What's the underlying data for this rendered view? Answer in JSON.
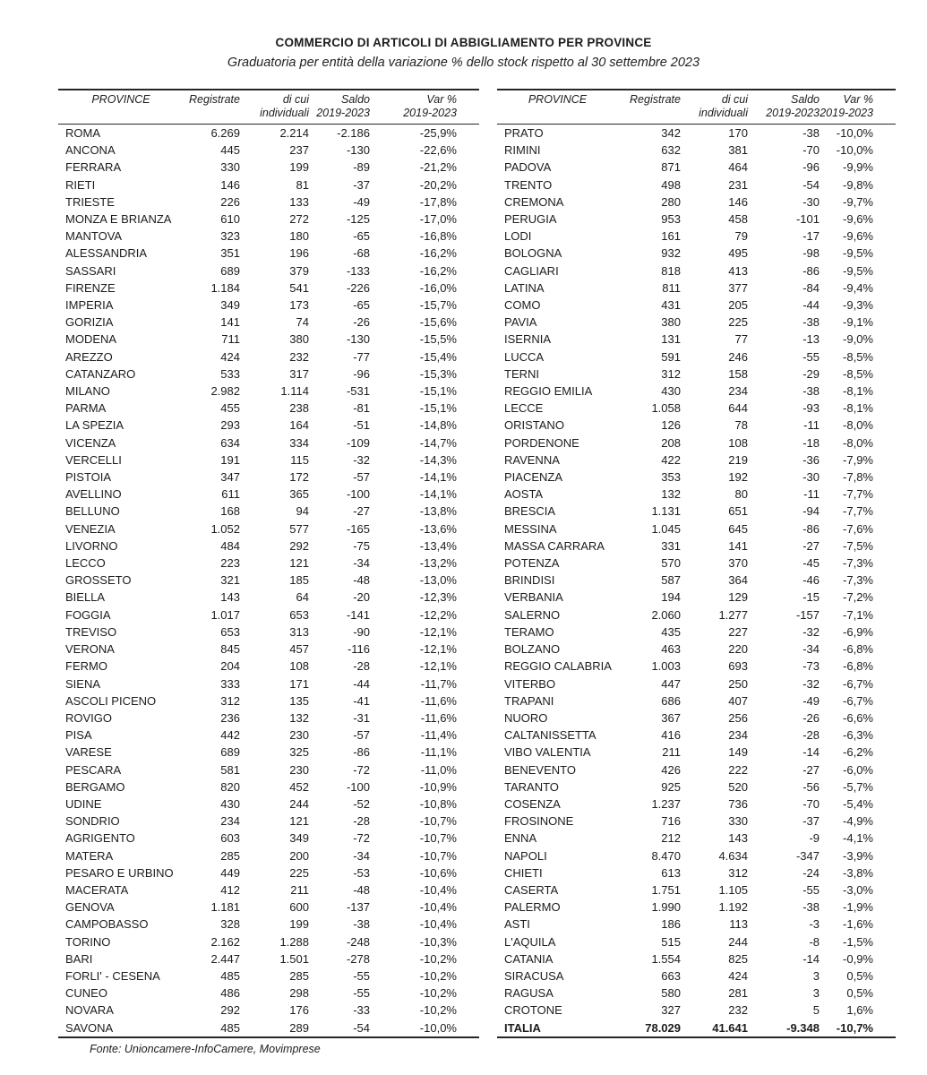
{
  "title": "COMMERCIO DI ARTICOLI DI ABBIGLIAMENTO PER PROVINCE",
  "subtitle": "Graduatoria per entità della variazione % dello stock rispetto al 30 settembre 2023",
  "source": "Fonte: Unioncamere-InfoCamere, Movimprese",
  "columns": [
    {
      "line1": "PROVINCE",
      "line2": ""
    },
    {
      "line1": "Registrate",
      "line2": ""
    },
    {
      "line1": "di cui",
      "line2": "individuali"
    },
    {
      "line1": "Saldo",
      "line2": "2019-2023"
    },
    {
      "line1": "Var %",
      "line2": "2019-2023"
    }
  ],
  "left_table": {
    "rows": [
      [
        "ROMA",
        "6.269",
        "2.214",
        "-2.186",
        "-25,9%"
      ],
      [
        "ANCONA",
        "445",
        "237",
        "-130",
        "-22,6%"
      ],
      [
        "FERRARA",
        "330",
        "199",
        "-89",
        "-21,2%"
      ],
      [
        "RIETI",
        "146",
        "81",
        "-37",
        "-20,2%"
      ],
      [
        "TRIESTE",
        "226",
        "133",
        "-49",
        "-17,8%"
      ],
      [
        "MONZA E BRIANZA",
        "610",
        "272",
        "-125",
        "-17,0%"
      ],
      [
        "MANTOVA",
        "323",
        "180",
        "-65",
        "-16,8%"
      ],
      [
        "ALESSANDRIA",
        "351",
        "196",
        "-68",
        "-16,2%"
      ],
      [
        "SASSARI",
        "689",
        "379",
        "-133",
        "-16,2%"
      ],
      [
        "FIRENZE",
        "1.184",
        "541",
        "-226",
        "-16,0%"
      ],
      [
        "IMPERIA",
        "349",
        "173",
        "-65",
        "-15,7%"
      ],
      [
        "GORIZIA",
        "141",
        "74",
        "-26",
        "-15,6%"
      ],
      [
        "MODENA",
        "711",
        "380",
        "-130",
        "-15,5%"
      ],
      [
        "AREZZO",
        "424",
        "232",
        "-77",
        "-15,4%"
      ],
      [
        "CATANZARO",
        "533",
        "317",
        "-96",
        "-15,3%"
      ],
      [
        "MILANO",
        "2.982",
        "1.114",
        "-531",
        "-15,1%"
      ],
      [
        "PARMA",
        "455",
        "238",
        "-81",
        "-15,1%"
      ],
      [
        "LA SPEZIA",
        "293",
        "164",
        "-51",
        "-14,8%"
      ],
      [
        "VICENZA",
        "634",
        "334",
        "-109",
        "-14,7%"
      ],
      [
        "VERCELLI",
        "191",
        "115",
        "-32",
        "-14,3%"
      ],
      [
        "PISTOIA",
        "347",
        "172",
        "-57",
        "-14,1%"
      ],
      [
        "AVELLINO",
        "611",
        "365",
        "-100",
        "-14,1%"
      ],
      [
        "BELLUNO",
        "168",
        "94",
        "-27",
        "-13,8%"
      ],
      [
        "VENEZIA",
        "1.052",
        "577",
        "-165",
        "-13,6%"
      ],
      [
        "LIVORNO",
        "484",
        "292",
        "-75",
        "-13,4%"
      ],
      [
        "LECCO",
        "223",
        "121",
        "-34",
        "-13,2%"
      ],
      [
        "GROSSETO",
        "321",
        "185",
        "-48",
        "-13,0%"
      ],
      [
        "BIELLA",
        "143",
        "64",
        "-20",
        "-12,3%"
      ],
      [
        "FOGGIA",
        "1.017",
        "653",
        "-141",
        "-12,2%"
      ],
      [
        "TREVISO",
        "653",
        "313",
        "-90",
        "-12,1%"
      ],
      [
        "VERONA",
        "845",
        "457",
        "-116",
        "-12,1%"
      ],
      [
        "FERMO",
        "204",
        "108",
        "-28",
        "-12,1%"
      ],
      [
        "SIENA",
        "333",
        "171",
        "-44",
        "-11,7%"
      ],
      [
        "ASCOLI PICENO",
        "312",
        "135",
        "-41",
        "-11,6%"
      ],
      [
        "ROVIGO",
        "236",
        "132",
        "-31",
        "-11,6%"
      ],
      [
        "PISA",
        "442",
        "230",
        "-57",
        "-11,4%"
      ],
      [
        "VARESE",
        "689",
        "325",
        "-86",
        "-11,1%"
      ],
      [
        "PESCARA",
        "581",
        "230",
        "-72",
        "-11,0%"
      ],
      [
        "BERGAMO",
        "820",
        "452",
        "-100",
        "-10,9%"
      ],
      [
        "UDINE",
        "430",
        "244",
        "-52",
        "-10,8%"
      ],
      [
        "SONDRIO",
        "234",
        "121",
        "-28",
        "-10,7%"
      ],
      [
        "AGRIGENTO",
        "603",
        "349",
        "-72",
        "-10,7%"
      ],
      [
        "MATERA",
        "285",
        "200",
        "-34",
        "-10,7%"
      ],
      [
        "PESARO E URBINO",
        "449",
        "225",
        "-53",
        "-10,6%"
      ],
      [
        "MACERATA",
        "412",
        "211",
        "-48",
        "-10,4%"
      ],
      [
        "GENOVA",
        "1.181",
        "600",
        "-137",
        "-10,4%"
      ],
      [
        "CAMPOBASSO",
        "328",
        "199",
        "-38",
        "-10,4%"
      ],
      [
        "TORINO",
        "2.162",
        "1.288",
        "-248",
        "-10,3%"
      ],
      [
        "BARI",
        "2.447",
        "1.501",
        "-278",
        "-10,2%"
      ],
      [
        "FORLI' - CESENA",
        "485",
        "285",
        "-55",
        "-10,2%"
      ],
      [
        "CUNEO",
        "486",
        "298",
        "-55",
        "-10,2%"
      ],
      [
        "NOVARA",
        "292",
        "176",
        "-33",
        "-10,2%"
      ],
      [
        "SAVONA",
        "485",
        "289",
        "-54",
        "-10,0%"
      ]
    ],
    "total": null
  },
  "right_table": {
    "rows": [
      [
        "PRATO",
        "342",
        "170",
        "-38",
        "-10,0%"
      ],
      [
        "RIMINI",
        "632",
        "381",
        "-70",
        "-10,0%"
      ],
      [
        "PADOVA",
        "871",
        "464",
        "-96",
        "-9,9%"
      ],
      [
        "TRENTO",
        "498",
        "231",
        "-54",
        "-9,8%"
      ],
      [
        "CREMONA",
        "280",
        "146",
        "-30",
        "-9,7%"
      ],
      [
        "PERUGIA",
        "953",
        "458",
        "-101",
        "-9,6%"
      ],
      [
        "LODI",
        "161",
        "79",
        "-17",
        "-9,6%"
      ],
      [
        "BOLOGNA",
        "932",
        "495",
        "-98",
        "-9,5%"
      ],
      [
        "CAGLIARI",
        "818",
        "413",
        "-86",
        "-9,5%"
      ],
      [
        "LATINA",
        "811",
        "377",
        "-84",
        "-9,4%"
      ],
      [
        "COMO",
        "431",
        "205",
        "-44",
        "-9,3%"
      ],
      [
        "PAVIA",
        "380",
        "225",
        "-38",
        "-9,1%"
      ],
      [
        "ISERNIA",
        "131",
        "77",
        "-13",
        "-9,0%"
      ],
      [
        "LUCCA",
        "591",
        "246",
        "-55",
        "-8,5%"
      ],
      [
        "TERNI",
        "312",
        "158",
        "-29",
        "-8,5%"
      ],
      [
        "REGGIO EMILIA",
        "430",
        "234",
        "-38",
        "-8,1%"
      ],
      [
        "LECCE",
        "1.058",
        "644",
        "-93",
        "-8,1%"
      ],
      [
        "ORISTANO",
        "126",
        "78",
        "-11",
        "-8,0%"
      ],
      [
        "PORDENONE",
        "208",
        "108",
        "-18",
        "-8,0%"
      ],
      [
        "RAVENNA",
        "422",
        "219",
        "-36",
        "-7,9%"
      ],
      [
        "PIACENZA",
        "353",
        "192",
        "-30",
        "-7,8%"
      ],
      [
        "AOSTA",
        "132",
        "80",
        "-11",
        "-7,7%"
      ],
      [
        "BRESCIA",
        "1.131",
        "651",
        "-94",
        "-7,7%"
      ],
      [
        "MESSINA",
        "1.045",
        "645",
        "-86",
        "-7,6%"
      ],
      [
        "MASSA CARRARA",
        "331",
        "141",
        "-27",
        "-7,5%"
      ],
      [
        "POTENZA",
        "570",
        "370",
        "-45",
        "-7,3%"
      ],
      [
        "BRINDISI",
        "587",
        "364",
        "-46",
        "-7,3%"
      ],
      [
        "VERBANIA",
        "194",
        "129",
        "-15",
        "-7,2%"
      ],
      [
        "SALERNO",
        "2.060",
        "1.277",
        "-157",
        "-7,1%"
      ],
      [
        "TERAMO",
        "435",
        "227",
        "-32",
        "-6,9%"
      ],
      [
        "BOLZANO",
        "463",
        "220",
        "-34",
        "-6,8%"
      ],
      [
        "REGGIO CALABRIA",
        "1.003",
        "693",
        "-73",
        "-6,8%"
      ],
      [
        "VITERBO",
        "447",
        "250",
        "-32",
        "-6,7%"
      ],
      [
        "TRAPANI",
        "686",
        "407",
        "-49",
        "-6,7%"
      ],
      [
        "NUORO",
        "367",
        "256",
        "-26",
        "-6,6%"
      ],
      [
        "CALTANISSETTA",
        "416",
        "234",
        "-28",
        "-6,3%"
      ],
      [
        "VIBO VALENTIA",
        "211",
        "149",
        "-14",
        "-6,2%"
      ],
      [
        "BENEVENTO",
        "426",
        "222",
        "-27",
        "-6,0%"
      ],
      [
        "TARANTO",
        "925",
        "520",
        "-56",
        "-5,7%"
      ],
      [
        "COSENZA",
        "1.237",
        "736",
        "-70",
        "-5,4%"
      ],
      [
        "FROSINONE",
        "716",
        "330",
        "-37",
        "-4,9%"
      ],
      [
        "ENNA",
        "212",
        "143",
        "-9",
        "-4,1%"
      ],
      [
        "NAPOLI",
        "8.470",
        "4.634",
        "-347",
        "-3,9%"
      ],
      [
        "CHIETI",
        "613",
        "312",
        "-24",
        "-3,8%"
      ],
      [
        "CASERTA",
        "1.751",
        "1.105",
        "-55",
        "-3,0%"
      ],
      [
        "PALERMO",
        "1.990",
        "1.192",
        "-38",
        "-1,9%"
      ],
      [
        "ASTI",
        "186",
        "113",
        "-3",
        "-1,6%"
      ],
      [
        "L'AQUILA",
        "515",
        "244",
        "-8",
        "-1,5%"
      ],
      [
        "CATANIA",
        "1.554",
        "825",
        "-14",
        "-0,9%"
      ],
      [
        "SIRACUSA",
        "663",
        "424",
        "3",
        "0,5%"
      ],
      [
        "RAGUSA",
        "580",
        "281",
        "3",
        "0,5%"
      ],
      [
        "CROTONE",
        "327",
        "232",
        "5",
        "1,6%"
      ]
    ],
    "total": [
      "ITALIA",
      "78.029",
      "41.641",
      "-9.348",
      "-10,7%"
    ]
  }
}
